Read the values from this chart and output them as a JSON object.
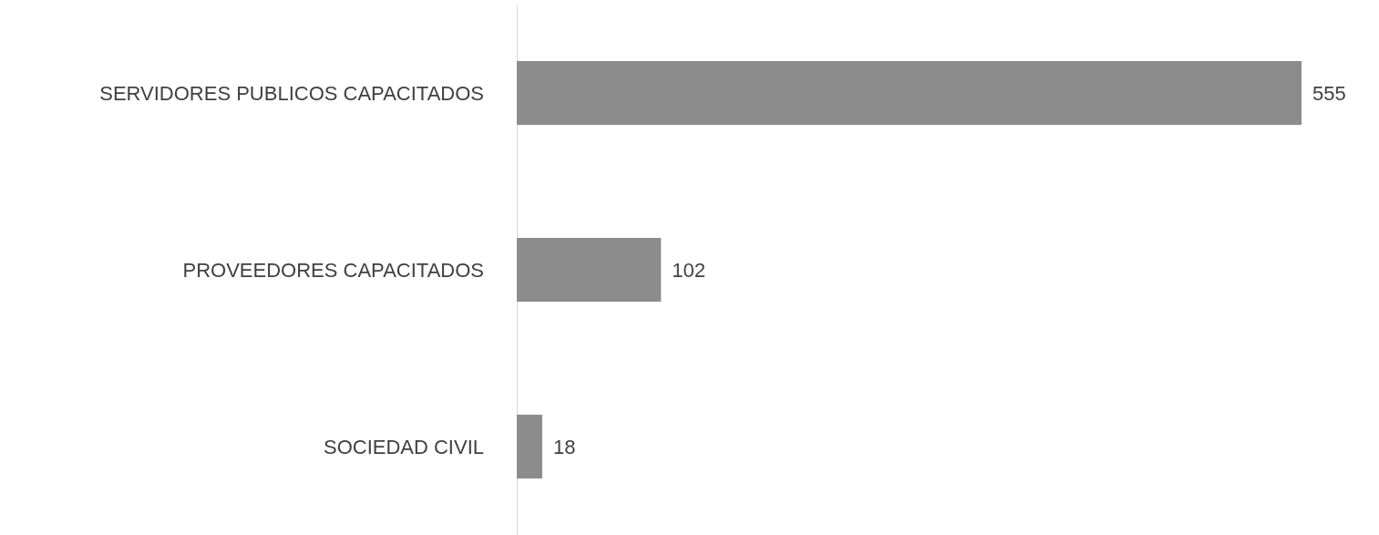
{
  "chart_data": {
    "type": "bar",
    "orientation": "horizontal",
    "categories": [
      "SERVIDORES PUBLICOS CAPACITADOS",
      "PROVEEDORES CAPACITADOS",
      "SOCIEDAD CIVIL"
    ],
    "values": [
      555,
      102,
      18
    ],
    "color": "#8c8c8c",
    "data_labels": true
  }
}
